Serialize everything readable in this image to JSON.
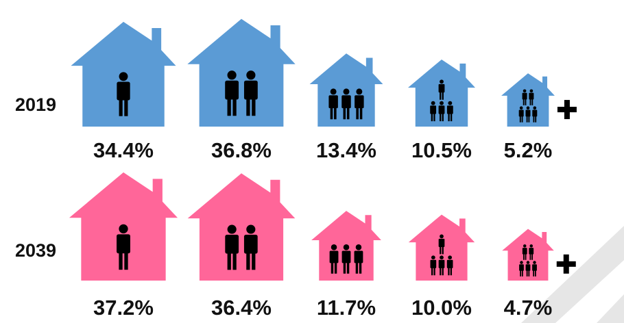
{
  "chart_data": {
    "type": "pictogram",
    "categories": [
      null,
      null,
      null,
      null,
      null
    ],
    "series": [
      {
        "name": "2019",
        "color": "#5b9bd5",
        "values": [
          34.4,
          36.8,
          13.4,
          10.5,
          5.2
        ],
        "value_labels": [
          "34.4%",
          "36.8%",
          "13.4%",
          "10.5%",
          "5.2%"
        ]
      },
      {
        "name": "2039",
        "color": "#ff6699",
        "values": [
          37.2,
          36.4,
          11.7,
          10.0,
          4.7
        ],
        "value_labels": [
          "37.2%",
          "36.4%",
          "11.7%",
          "10.0%",
          "4.7%"
        ]
      }
    ]
  }
}
